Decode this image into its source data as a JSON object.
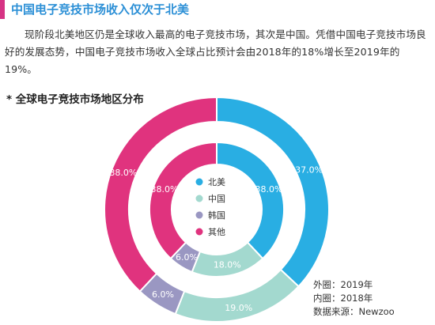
{
  "heading": "中国电子竞技市场收入仅次于北美",
  "paragraph": "现阶段北美地区仍是全球收入最高的电子竞技市场，其次是中国。凭借中国电子竞技市场良好的发展态势，中国电子竞技市场收入全球占比预计会由2018年的18%增长至2019年的19%。",
  "subheading": "* 全球电子竞技市场地区分布",
  "chart_data": {
    "type": "pie",
    "variant": "nested-donut",
    "categories": [
      "北美",
      "中国",
      "韩国",
      "其他"
    ],
    "colors": [
      "#29aee3",
      "#a3d9cf",
      "#9a97c2",
      "#e0337e"
    ],
    "series": [
      {
        "name": "外圈：2019年",
        "values": [
          37.0,
          19.0,
          6.0,
          38.0
        ],
        "labels": [
          "37.0%",
          "19.0%",
          "6.0%",
          "38.0%"
        ]
      },
      {
        "name": "内圈：2018年",
        "values": [
          38.0,
          18.0,
          6.0,
          38.0
        ],
        "labels": [
          "38.0%",
          "18.0%",
          "6.0%",
          "38.0%"
        ]
      }
    ],
    "legend_position": "center"
  },
  "notes": {
    "outer": "外圈：2019年",
    "inner": "内圈：2018年",
    "source": "数据来源：Newzoo"
  }
}
